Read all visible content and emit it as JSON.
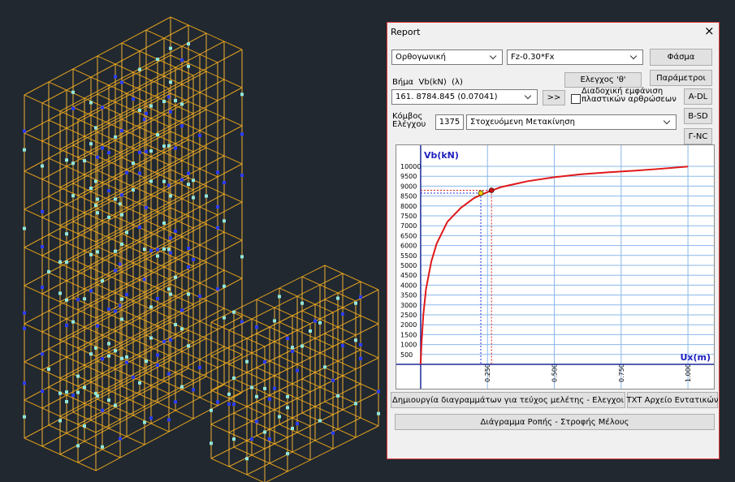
{
  "dialog": {
    "title": "Report",
    "close": "×",
    "analysis_type": "Ορθογωνική",
    "load_case": "Fz-0.30*Fx",
    "spectrum_button": "Φάσμα",
    "theta_check_button": "Ελεγχος 'θ'",
    "parameters_button": "Παράμετροι",
    "step_label": "Βήμα  Vb(kN)  (λ)",
    "step_value": "161. 8784.845 (0.07041)",
    "next_button": ">>",
    "sequential_checkbox": [
      "Διαδοχική εμφάνιση",
      "πλαστικών αρθρώσεων"
    ],
    "a_dl": "A-DL",
    "b_sd": "B-SD",
    "g_nc": "Γ-NC",
    "control_node_label": [
      "Κόμβος",
      "Ελέγχου"
    ],
    "control_node": "1375",
    "target": "Στοχευόμενη Μετακίνηση",
    "create_diagrams_button": "Δημιουργία διαγραμμάτων για τεύχος μελέτης - Ελεγχοι",
    "txt_button": "TXT Αρχείο Εντατικών",
    "moment_rotation_button": "Διάγραμμα Ροπής - Στροφής Μέλους"
  },
  "chart_data": {
    "type": "line",
    "ylabel": "Vb(kN)",
    "xlabel": "Ux(m)",
    "color": "#e01818",
    "x": [
      0,
      0.003,
      0.01,
      0.02,
      0.04,
      0.06,
      0.1,
      0.15,
      0.2,
      0.25,
      0.3,
      0.4,
      0.5,
      0.6,
      0.7,
      0.8,
      0.9,
      1.0
    ],
    "values": [
      0,
      1000,
      2500,
      3800,
      5200,
      6100,
      7200,
      7900,
      8400,
      8700,
      8950,
      9250,
      9450,
      9600,
      9700,
      9780,
      9880,
      9990
    ],
    "points": [
      {
        "x": 0.225,
        "y": 8650,
        "color": "#f0d000"
      },
      {
        "x": 0.265,
        "y": 8790,
        "color": "#d01010"
      }
    ],
    "xlim": [
      -0.091,
      1.097
    ],
    "ylim": [
      -1230,
      11066
    ],
    "xticks": [
      {
        "value": 0.25,
        "label": "0.250"
      },
      {
        "value": 0.5,
        "label": "0.500"
      },
      {
        "value": 0.75,
        "label": "0.750"
      },
      {
        "value": 1,
        "label": "1.000"
      }
    ],
    "yticks": [
      500,
      1000,
      1500,
      2000,
      2500,
      3000,
      3500,
      4000,
      4500,
      5000,
      5500,
      6000,
      6500,
      7000,
      7500,
      8000,
      8500,
      9000,
      9500,
      10000
    ],
    "grid": true
  }
}
